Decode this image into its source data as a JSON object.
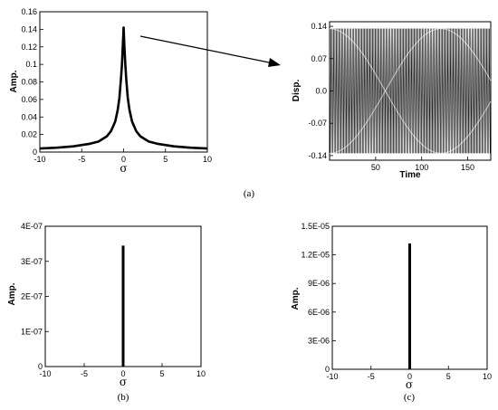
{
  "chart_data": [
    {
      "id": "a_left",
      "type": "line",
      "xlabel": "σ",
      "ylabel": "Amp.",
      "xlim": [
        -10,
        10
      ],
      "ylim": [
        0,
        0.16
      ],
      "xticks": [
        "-10",
        "-5",
        "0",
        "5",
        "10"
      ],
      "yticks": [
        "0",
        "0.02",
        "0.04",
        "0.06",
        "0.08",
        "0.1",
        "0.12",
        "0.14",
        "0.16"
      ],
      "series": [
        {
          "x": [
            -10,
            -8,
            -6,
            -4,
            -3,
            -2,
            -1.5,
            -1,
            -0.7,
            -0.5,
            -0.3,
            -0.2,
            -0.1,
            0,
            0.1,
            0.2,
            0.3,
            0.5,
            0.7,
            1,
            1.5,
            2,
            3,
            4,
            6,
            8,
            10
          ],
          "values": [
            0.004,
            0.005,
            0.0065,
            0.0095,
            0.012,
            0.018,
            0.024,
            0.035,
            0.048,
            0.062,
            0.085,
            0.1,
            0.12,
            0.142,
            0.12,
            0.1,
            0.085,
            0.062,
            0.048,
            0.035,
            0.024,
            0.018,
            0.012,
            0.0095,
            0.0065,
            0.005,
            0.004
          ]
        }
      ],
      "grid": false
    },
    {
      "id": "a_right",
      "type": "line",
      "xlabel": "Time",
      "ylabel": "Disp.",
      "xlim": [
        0,
        175
      ],
      "ylim": [
        -0.15,
        0.15
      ],
      "xticks": [
        "50",
        "100",
        "150"
      ],
      "yticks": [
        "-0.14",
        "-0.07",
        "0.0",
        "0.07",
        "0.14"
      ],
      "signal": {
        "amplitude": 0.135,
        "envelope_period": 121,
        "carrier_cycles": 120
      },
      "grid": false
    },
    {
      "id": "b",
      "type": "line",
      "xlabel": "σ",
      "ylabel": "Amp.",
      "xlim": [
        -10,
        10
      ],
      "ylim": [
        0,
        4e-07
      ],
      "xticks": [
        "-10",
        "-5",
        "0",
        "5",
        "10"
      ],
      "yticks": [
        "0",
        "1E-07",
        "2E-07",
        "3E-07",
        "4E-07"
      ],
      "series": [
        {
          "x": [
            0
          ],
          "values": [
            3.45e-07
          ]
        }
      ],
      "grid": false
    },
    {
      "id": "c",
      "type": "line",
      "xlabel": "σ",
      "ylabel": "Amp.",
      "xlim": [
        -10,
        10
      ],
      "ylim": [
        0,
        1.5e-05
      ],
      "xticks": [
        "-10",
        "-5",
        "0",
        "5",
        "10"
      ],
      "yticks": [
        "0",
        "3E-06",
        "6E-06",
        "9E-06",
        "1.2E-05",
        "1.5E-05"
      ],
      "series": [
        {
          "x": [
            0
          ],
          "values": [
            1.32e-05
          ]
        }
      ],
      "grid": false
    }
  ],
  "captions": {
    "a": "(a)",
    "b": "(b)",
    "c": "(c)"
  }
}
